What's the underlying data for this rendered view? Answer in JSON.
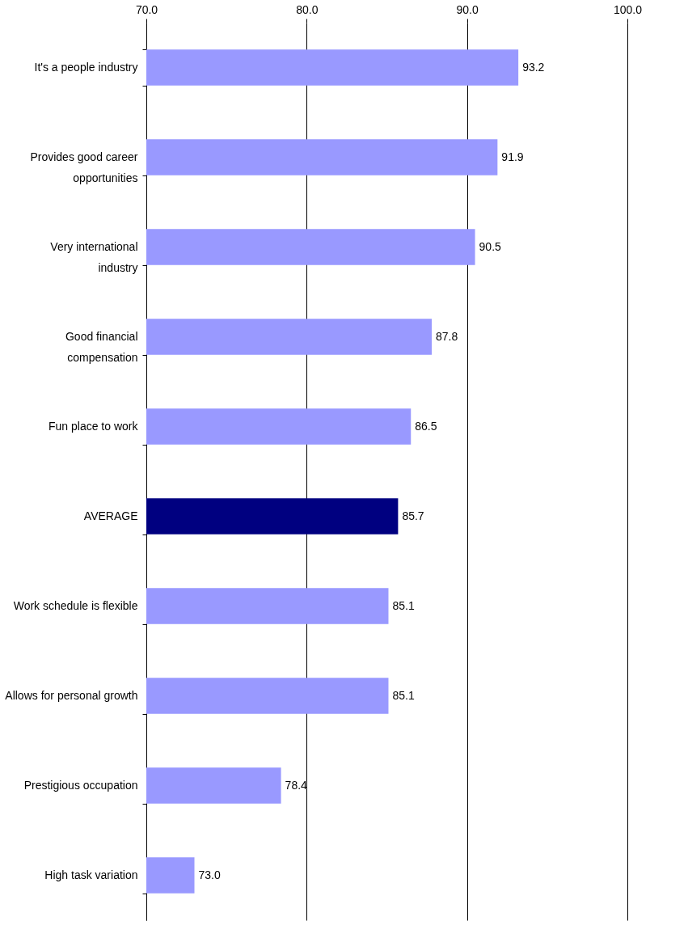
{
  "chart_data": {
    "type": "bar",
    "orientation": "horizontal",
    "categories": [
      "It's a people industry",
      "Provides good career opportunities",
      "Very international industry",
      "Good financial compensation",
      "Fun place to work",
      "AVERAGE",
      "Work schedule is flexible",
      "Allows for personal growth",
      "Prestigious occupation",
      "High task variation"
    ],
    "values": [
      93.2,
      91.9,
      90.5,
      87.8,
      86.5,
      85.7,
      85.1,
      85.1,
      78.4,
      73.0
    ],
    "colors": [
      "#9999ff",
      "#9999ff",
      "#9999ff",
      "#9999ff",
      "#9999ff",
      "#000080",
      "#9999ff",
      "#9999ff",
      "#9999ff",
      "#9999ff"
    ],
    "xlim": [
      70,
      100
    ],
    "xticks": [
      {
        "value": 70,
        "label": "70.0"
      },
      {
        "value": 80,
        "label": "80.0"
      },
      {
        "value": 90,
        "label": "90.0"
      },
      {
        "value": 100,
        "label": "100.0"
      }
    ],
    "value_labels": [
      "93.2",
      "91.9",
      "90.5",
      "87.8",
      "86.5",
      "85.7",
      "85.1",
      "85.1",
      "78.4",
      "73.0"
    ],
    "grid": "x"
  }
}
